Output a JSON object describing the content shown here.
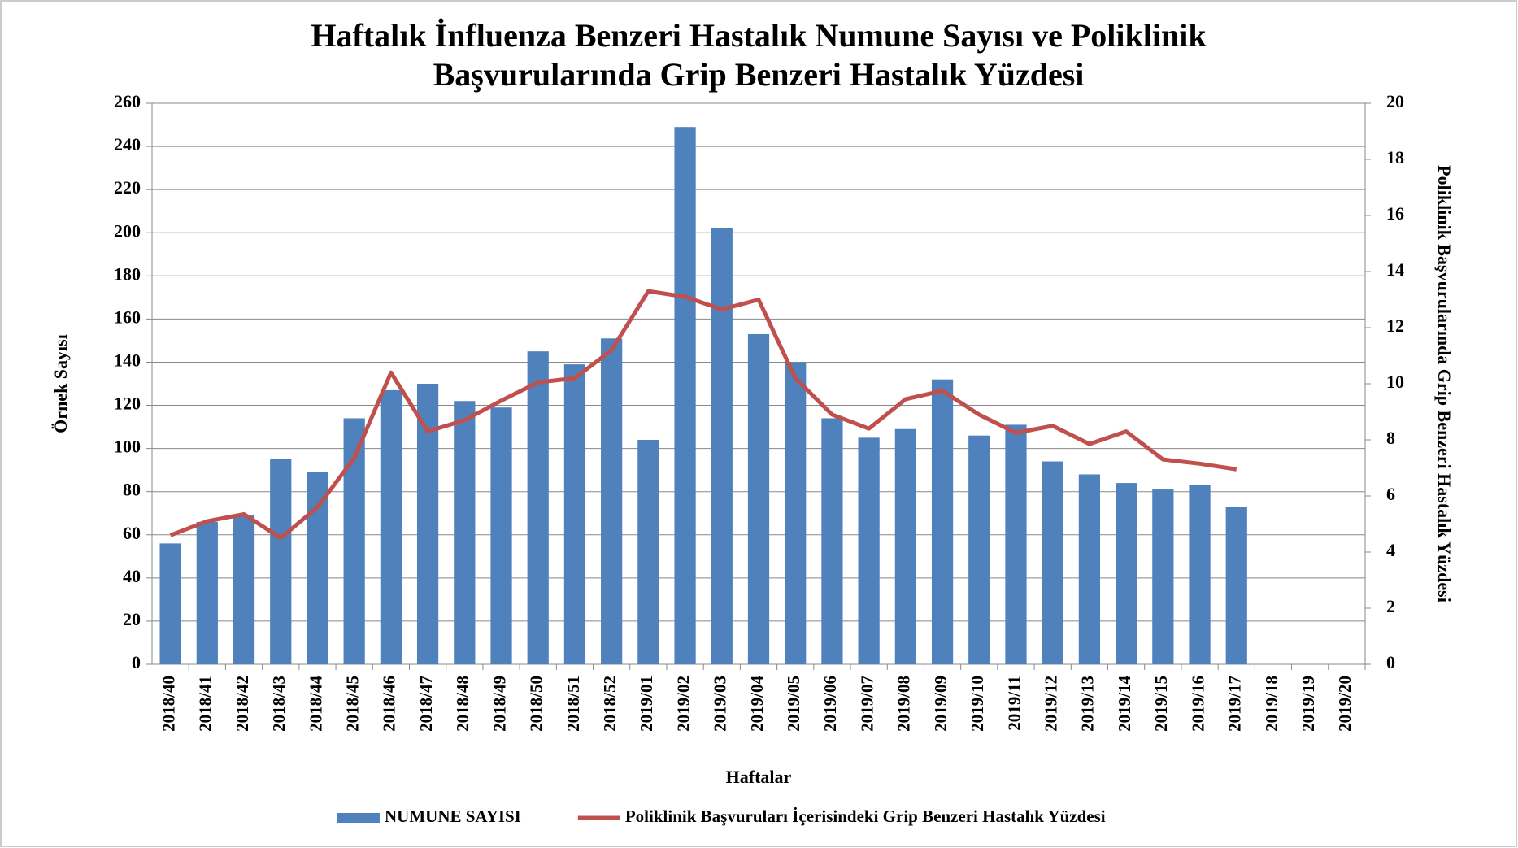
{
  "chart_data": {
    "type": "bar-line",
    "title": [
      "Haftalık İnfluenza Benzeri Hastalık Numune Sayısı ve Poliklinik",
      "Başvurularında Grip Benzeri Hastalık Yüzdesi"
    ],
    "x_label": "Haftalar",
    "y_label": "Örnek Sayısı",
    "y2_label": "Poliklinik Başvurularında Grip Benzeri Hastalık Yüzdesi",
    "categories": [
      "2018/40",
      "2018/41",
      "2018/42",
      "2018/43",
      "2018/44",
      "2018/45",
      "2018/46",
      "2018/47",
      "2018/48",
      "2018/49",
      "2018/50",
      "2018/51",
      "2018/52",
      "2019/01",
      "2019/02",
      "2019/03",
      "2019/04",
      "2019/05",
      "2019/06",
      "2019/07",
      "2019/08",
      "2019/09",
      "2019/10",
      "2019/11",
      "2019/12",
      "2019/13",
      "2019/14",
      "2019/15",
      "2019/16",
      "2019/17",
      "2019/18",
      "2019/19",
      "2019/20"
    ],
    "series": [
      {
        "name": "NUMUNE SAYISI",
        "type": "bar",
        "color": "#4f81bd",
        "values": [
          56,
          66,
          69,
          95,
          89,
          114,
          127,
          130,
          122,
          119,
          145,
          139,
          151,
          104,
          249,
          202,
          153,
          140,
          114,
          105,
          109,
          132,
          106,
          111,
          94,
          88,
          84,
          81,
          83,
          73,
          null,
          null,
          null
        ]
      },
      {
        "name": "Poliklinik Başvuruları İçerisindeki Grip Benzeri Hastalık Yüzdesi",
        "type": "line",
        "axis": "y2",
        "color": "#c0504d",
        "values": [
          4.6,
          5.1,
          5.35,
          4.5,
          5.6,
          7.35,
          10.4,
          8.3,
          8.7,
          9.4,
          10.05,
          10.2,
          11.2,
          13.3,
          13.1,
          12.65,
          13.0,
          10.2,
          8.9,
          8.4,
          9.45,
          9.75,
          8.9,
          8.25,
          8.5,
          7.85,
          8.3,
          7.3,
          7.15,
          6.95,
          null,
          null,
          null
        ]
      }
    ],
    "ylim": [
      0,
      260
    ],
    "yticks": [
      0,
      20,
      40,
      60,
      80,
      100,
      120,
      140,
      160,
      180,
      200,
      220,
      240,
      260
    ],
    "y2lim": [
      0,
      20
    ],
    "y2ticks": [
      0,
      2,
      4,
      6,
      8,
      10,
      12,
      14,
      16,
      18,
      20
    ],
    "grid": true,
    "legend": "bottom"
  }
}
